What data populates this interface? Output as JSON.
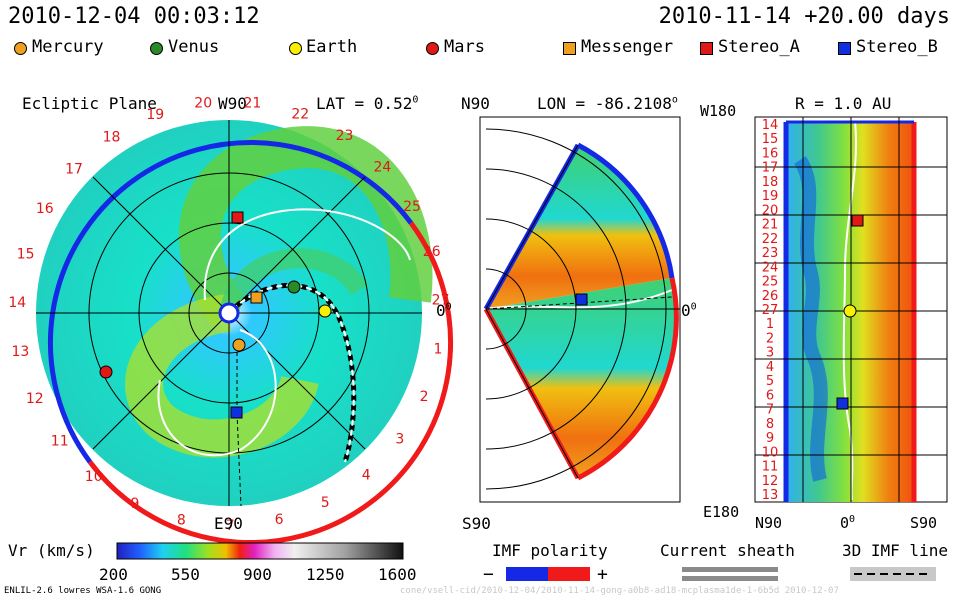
{
  "header": {
    "left_time": "2010-12-04 00:03:12",
    "right_time": "2010-11-14 +20.00 days"
  },
  "legend": [
    {
      "name": "Mercury",
      "shape": "circle",
      "color": "#f0a020"
    },
    {
      "name": "Venus",
      "shape": "circle",
      "color": "#2a8a2a"
    },
    {
      "name": "Earth",
      "shape": "circle",
      "color": "#f8f000"
    },
    {
      "name": "Mars",
      "shape": "circle",
      "color": "#e01818"
    },
    {
      "name": "Messenger",
      "shape": "square",
      "color": "#f0a020"
    },
    {
      "name": "Stereo_A",
      "shape": "square",
      "color": "#e01818"
    },
    {
      "name": "Stereo_B",
      "shape": "square",
      "color": "#1030e0"
    }
  ],
  "panels": {
    "ecliptic": {
      "title": "Ecliptic Plane",
      "top": "W90",
      "bottom": "E90",
      "right": "0",
      "right_sup": "0"
    },
    "meridional": {
      "title": "LAT = 0.52",
      "title_sup": "0",
      "top": "N90",
      "bottom": "S90",
      "right": "0",
      "right_sup": "0"
    },
    "rplane": {
      "title_lon": "LON = -86.2108",
      "lon_sup": "o",
      "title_r": "R = 1.0 AU",
      "top": "W180",
      "bottom": "E180",
      "xlabels": [
        "N90",
        "0",
        "S90"
      ],
      "x0_sup": "0"
    }
  },
  "dates_ring": [
    "20",
    "21",
    "22",
    "23",
    "24",
    "25",
    "26",
    "27",
    "1",
    "2",
    "3",
    "4",
    "5",
    "6",
    "7",
    "8",
    "9",
    "10",
    "11",
    "12",
    "13",
    "14",
    "15",
    "16",
    "17",
    "18",
    "19"
  ],
  "rplane_days": [
    "14",
    "15",
    "16",
    "17",
    "18",
    "19",
    "20",
    "21",
    "22",
    "23",
    "24",
    "25",
    "26",
    "27",
    "1",
    "2",
    "3",
    "4",
    "5",
    "6",
    "7",
    "8",
    "9",
    "10",
    "11",
    "12",
    "13"
  ],
  "colorbar": {
    "label": "Vr (km/s)",
    "ticks": [
      "200",
      "550",
      "900",
      "1250",
      "1600"
    ]
  },
  "imf": {
    "title": "IMF polarity",
    "minus": "−",
    "plus": "+",
    "minus_color": "#1428e6",
    "plus_color": "#f01a1a"
  },
  "sheath": {
    "title": "Current sheath"
  },
  "imf3d": {
    "title": "3D IMF line"
  },
  "footer": {
    "left": "ENLIL-2.6 lowres WSA-1.6 GONG",
    "right": "cone/vsell-cid/2010-12-04/2010-11-14-gong-a0b8-ad18-mcplasma1de-1-6b5d   2010-12-07"
  }
}
